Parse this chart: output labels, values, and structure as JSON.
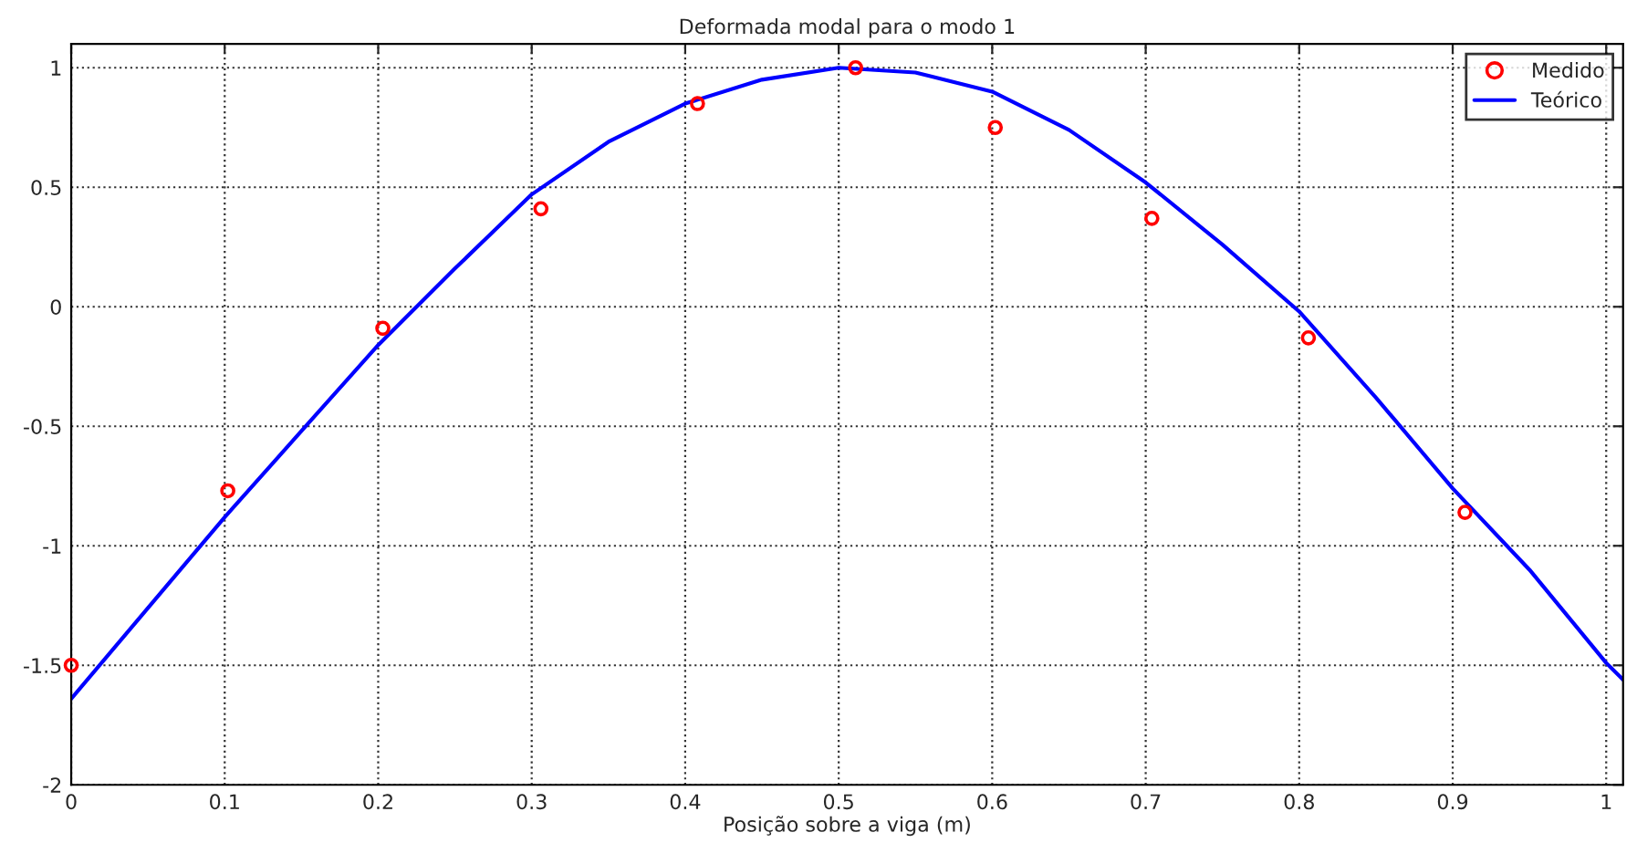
{
  "chart_data": {
    "type": "line",
    "title": "Deformada modal para o modo 1",
    "xlabel": "Posição sobre a viga (m)",
    "series": [
      {
        "name": "Medido",
        "type": "scatter",
        "color": "#ff0000",
        "marker": "circle",
        "x": [
          0,
          0.102,
          0.203,
          0.306,
          0.408,
          0.511,
          0.602,
          0.704,
          0.806,
          0.908
        ],
        "values": [
          -1.5,
          -0.77,
          -0.09,
          0.41,
          0.85,
          1.0,
          0.75,
          0.37,
          -0.13,
          -0.86
        ]
      },
      {
        "name": "Teórico",
        "color": "#0000ff",
        "x": [
          0,
          0.05,
          0.1,
          0.15,
          0.2,
          0.25,
          0.3,
          0.35,
          0.4,
          0.45,
          0.5,
          0.55,
          0.6,
          0.65,
          0.7,
          0.75,
          0.8,
          0.85,
          0.9,
          0.95,
          1.0,
          1.011
        ],
        "values": [
          -1.64,
          -1.26,
          -0.88,
          -0.52,
          -0.16,
          0.16,
          0.47,
          0.69,
          0.85,
          0.95,
          1.0,
          0.98,
          0.9,
          0.74,
          0.52,
          0.26,
          -0.02,
          -0.38,
          -0.76,
          -1.1,
          -1.49,
          -1.56
        ]
      }
    ],
    "xlim": [
      0,
      1.011
    ],
    "ylim": [
      -2,
      1.1
    ],
    "xticks": [
      0,
      0.1,
      0.2,
      0.3,
      0.4,
      0.5,
      0.6,
      0.7,
      0.8,
      0.9,
      1
    ],
    "yticks": [
      -2,
      -1.5,
      -1,
      -0.5,
      0,
      0.5,
      1
    ],
    "grid": true,
    "legend": "top right",
    "line_style": "solid"
  }
}
